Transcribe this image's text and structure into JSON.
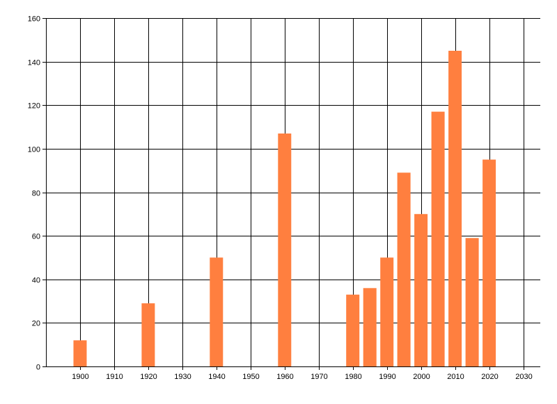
{
  "chart_data": {
    "type": "bar",
    "title": "",
    "xlabel": "",
    "ylabel": "",
    "x": [
      1900,
      1920,
      1940,
      1960,
      1980,
      1985,
      1990,
      1995,
      2000,
      2005,
      2010,
      2015,
      2020
    ],
    "values": [
      12,
      29,
      50,
      107,
      33,
      36,
      50,
      89,
      70,
      117,
      145,
      59,
      95
    ],
    "xlim": [
      1890,
      2035
    ],
    "ylim": [
      0,
      160
    ],
    "x_ticks": [
      1900,
      1910,
      1920,
      1930,
      1940,
      1950,
      1960,
      1970,
      1980,
      1990,
      2000,
      2010,
      2020,
      2030
    ],
    "y_ticks": [
      0,
      20,
      40,
      60,
      80,
      100,
      120,
      140,
      160
    ],
    "bar_color": "#ff7f3f",
    "grid": true,
    "legend": "none"
  }
}
